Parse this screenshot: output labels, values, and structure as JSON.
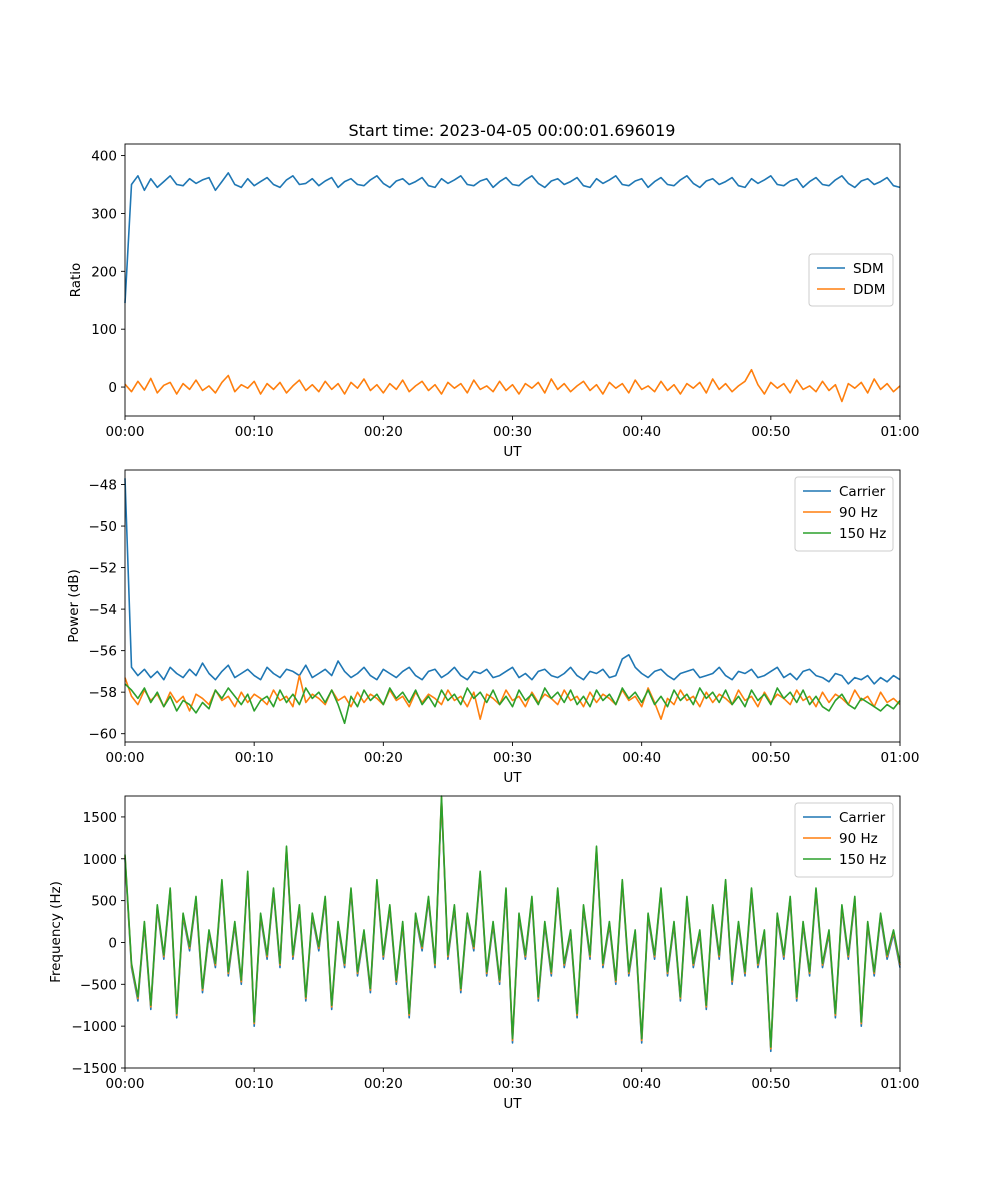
{
  "figure": {
    "title": "Start time: 2023-04-05 00:00:01.696019"
  },
  "chart_data": [
    {
      "type": "line",
      "ylabel": "Ratio",
      "xlabel": "UT",
      "xlim": [
        0,
        60
      ],
      "ylim": [
        -50,
        420
      ],
      "x_ticks": [
        "00:00",
        "00:10",
        "00:20",
        "00:30",
        "00:40",
        "00:50",
        "01:00"
      ],
      "y_ticks": [
        0,
        100,
        200,
        300,
        400
      ],
      "legend_position": "center-right",
      "series": [
        {
          "name": "SDM",
          "color": "#1f77b4",
          "values": [
            145,
            350,
            365,
            340,
            360,
            345,
            355,
            365,
            350,
            348,
            360,
            352,
            358,
            362,
            340,
            355,
            370,
            350,
            345,
            360,
            348,
            355,
            362,
            350,
            345,
            358,
            365,
            350,
            352,
            360,
            348,
            356,
            362,
            345,
            355,
            360,
            350,
            348,
            358,
            365,
            352,
            345,
            356,
            360,
            350,
            355,
            362,
            348,
            345,
            360,
            352,
            358,
            365,
            350,
            348,
            356,
            360,
            345,
            355,
            362,
            350,
            348,
            358,
            365,
            352,
            345,
            356,
            360,
            350,
            355,
            362,
            348,
            345,
            360,
            352,
            358,
            365,
            350,
            348,
            356,
            360,
            345,
            355,
            362,
            350,
            348,
            358,
            365,
            352,
            345,
            356,
            360,
            350,
            355,
            362,
            348,
            345,
            360,
            352,
            358,
            365,
            350,
            348,
            356,
            360,
            345,
            355,
            362,
            350,
            348,
            358,
            365,
            352,
            345,
            356,
            360,
            350,
            355,
            362,
            348,
            345
          ]
        },
        {
          "name": "DDM",
          "color": "#ff7f0e",
          "values": [
            5,
            -8,
            10,
            -5,
            15,
            -10,
            3,
            8,
            -12,
            6,
            -4,
            12,
            -6,
            2,
            -10,
            8,
            20,
            -8,
            4,
            -2,
            10,
            -12,
            6,
            -4,
            8,
            -10,
            2,
            12,
            -6,
            4,
            -8,
            10,
            -4,
            6,
            -12,
            8,
            -2,
            14,
            -6,
            4,
            -10,
            6,
            -4,
            12,
            -8,
            2,
            10,
            -6,
            4,
            -12,
            8,
            -2,
            6,
            -10,
            12,
            -4,
            2,
            -8,
            10,
            -6,
            4,
            -12,
            6,
            -2,
            8,
            -10,
            14,
            -4,
            6,
            -8,
            2,
            10,
            -6,
            4,
            -12,
            8,
            -2,
            6,
            -10,
            12,
            -4,
            2,
            -8,
            10,
            -6,
            4,
            -12,
            6,
            -2,
            8,
            -10,
            14,
            -4,
            6,
            -8,
            2,
            10,
            30,
            4,
            -12,
            8,
            -2,
            6,
            -10,
            12,
            -4,
            2,
            -8,
            10,
            -6,
            4,
            -25,
            6,
            -2,
            8,
            -10,
            14,
            -4,
            6,
            -8,
            2
          ]
        }
      ]
    },
    {
      "type": "line",
      "ylabel": "Power (dB)",
      "xlabel": "UT",
      "xlim": [
        0,
        60
      ],
      "ylim": [
        -60.4,
        -47.3
      ],
      "x_ticks": [
        "00:00",
        "00:10",
        "00:20",
        "00:30",
        "00:40",
        "00:50",
        "01:00"
      ],
      "y_ticks": [
        -48,
        -50,
        -52,
        -54,
        -56,
        -58,
        -60
      ],
      "legend_position": "upper right",
      "series": [
        {
          "name": "Carrier",
          "color": "#1f77b4",
          "values": [
            -47.7,
            -56.8,
            -57.2,
            -56.9,
            -57.3,
            -57.0,
            -57.4,
            -56.8,
            -57.1,
            -57.3,
            -56.9,
            -57.2,
            -56.6,
            -57.1,
            -57.4,
            -57.0,
            -56.7,
            -57.3,
            -57.1,
            -56.9,
            -57.2,
            -57.4,
            -56.8,
            -57.1,
            -57.3,
            -56.9,
            -57.0,
            -57.2,
            -56.7,
            -57.3,
            -57.1,
            -56.9,
            -57.2,
            -56.5,
            -57.0,
            -57.3,
            -57.1,
            -56.8,
            -57.2,
            -57.4,
            -56.9,
            -57.1,
            -57.3,
            -57.0,
            -56.8,
            -57.2,
            -57.4,
            -57.0,
            -56.9,
            -57.3,
            -57.1,
            -56.8,
            -57.2,
            -57.4,
            -57.0,
            -57.1,
            -56.9,
            -57.3,
            -57.2,
            -57.0,
            -56.8,
            -57.3,
            -57.1,
            -57.4,
            -57.0,
            -56.9,
            -57.2,
            -57.3,
            -57.1,
            -56.8,
            -57.2,
            -57.4,
            -57.0,
            -57.1,
            -56.9,
            -57.3,
            -57.2,
            -56.4,
            -56.2,
            -56.8,
            -57.1,
            -57.3,
            -57.0,
            -56.9,
            -57.2,
            -57.4,
            -57.1,
            -57.0,
            -56.9,
            -57.3,
            -57.2,
            -57.1,
            -56.8,
            -57.2,
            -57.4,
            -57.0,
            -57.1,
            -56.9,
            -57.3,
            -57.2,
            -57.0,
            -56.8,
            -57.3,
            -57.1,
            -57.4,
            -57.0,
            -56.9,
            -57.2,
            -57.3,
            -57.5,
            -57.1,
            -57.2,
            -57.6,
            -57.3,
            -57.4,
            -57.2,
            -57.6,
            -57.3,
            -57.5,
            -57.2,
            -57.4
          ]
        },
        {
          "name": "90 Hz",
          "color": "#ff7f0e",
          "values": [
            -57.3,
            -58.2,
            -58.6,
            -57.9,
            -58.4,
            -58.1,
            -58.7,
            -58.0,
            -58.5,
            -58.2,
            -58.9,
            -58.1,
            -58.3,
            -58.6,
            -57.9,
            -58.4,
            -58.2,
            -58.7,
            -58.0,
            -58.5,
            -58.1,
            -58.3,
            -58.6,
            -57.9,
            -58.4,
            -58.2,
            -58.7,
            -57.2,
            -58.5,
            -58.1,
            -58.3,
            -58.6,
            -57.9,
            -58.4,
            -58.2,
            -58.7,
            -58.0,
            -58.5,
            -58.1,
            -58.3,
            -58.6,
            -57.9,
            -58.4,
            -58.2,
            -58.7,
            -58.0,
            -58.5,
            -58.1,
            -58.3,
            -58.6,
            -57.9,
            -58.4,
            -58.2,
            -58.7,
            -58.0,
            -59.3,
            -58.1,
            -58.3,
            -58.6,
            -57.9,
            -58.4,
            -58.2,
            -58.7,
            -58.0,
            -58.5,
            -58.1,
            -58.3,
            -58.6,
            -57.9,
            -58.4,
            -58.2,
            -58.7,
            -58.0,
            -58.5,
            -58.1,
            -58.3,
            -58.6,
            -57.9,
            -58.4,
            -58.2,
            -58.7,
            -57.8,
            -58.5,
            -59.3,
            -58.3,
            -58.6,
            -57.9,
            -58.4,
            -58.2,
            -58.7,
            -58.0,
            -58.5,
            -58.1,
            -58.3,
            -58.6,
            -57.9,
            -58.4,
            -58.2,
            -58.7,
            -58.0,
            -58.5,
            -58.1,
            -58.3,
            -58.6,
            -57.9,
            -58.4,
            -58.2,
            -58.7,
            -58.0,
            -58.5,
            -58.1,
            -58.3,
            -58.6,
            -57.9,
            -58.4,
            -58.2,
            -58.7,
            -58.0,
            -58.5,
            -58.3,
            -58.6
          ]
        },
        {
          "name": "150 Hz",
          "color": "#2ca02c",
          "values": [
            -57.6,
            -57.9,
            -58.3,
            -57.8,
            -58.5,
            -58.0,
            -58.7,
            -58.2,
            -58.9,
            -58.4,
            -58.6,
            -59.0,
            -58.5,
            -58.8,
            -57.9,
            -58.3,
            -57.8,
            -58.2,
            -58.6,
            -58.1,
            -58.9,
            -58.4,
            -58.2,
            -58.7,
            -57.9,
            -58.5,
            -58.1,
            -58.6,
            -57.8,
            -58.3,
            -58.0,
            -58.5,
            -57.9,
            -58.6,
            -59.5,
            -58.2,
            -58.7,
            -57.9,
            -58.4,
            -58.1,
            -58.6,
            -57.8,
            -58.3,
            -58.0,
            -58.5,
            -57.9,
            -58.6,
            -58.2,
            -58.7,
            -57.9,
            -58.4,
            -58.1,
            -58.6,
            -57.8,
            -58.3,
            -58.0,
            -58.5,
            -57.9,
            -58.6,
            -58.2,
            -58.7,
            -57.9,
            -58.4,
            -58.1,
            -58.6,
            -57.8,
            -58.3,
            -58.0,
            -58.5,
            -57.9,
            -58.6,
            -58.2,
            -58.7,
            -57.9,
            -58.4,
            -58.1,
            -58.6,
            -57.8,
            -58.3,
            -58.0,
            -58.5,
            -57.9,
            -58.6,
            -58.2,
            -58.7,
            -57.9,
            -58.4,
            -58.1,
            -58.6,
            -57.8,
            -58.3,
            -58.0,
            -58.5,
            -57.9,
            -58.6,
            -58.2,
            -58.7,
            -57.9,
            -58.4,
            -58.1,
            -58.6,
            -57.8,
            -58.3,
            -58.0,
            -58.5,
            -57.9,
            -58.6,
            -58.2,
            -58.7,
            -58.9,
            -58.4,
            -58.1,
            -58.6,
            -58.8,
            -58.3,
            -58.5,
            -58.7,
            -58.9,
            -58.6,
            -58.8,
            -58.4
          ]
        }
      ]
    },
    {
      "type": "line",
      "ylabel": "Frequency (Hz)",
      "xlabel": "UT",
      "xlim": [
        0,
        60
      ],
      "ylim": [
        -1500,
        1750
      ],
      "x_ticks": [
        "00:00",
        "00:10",
        "00:20",
        "00:30",
        "00:40",
        "00:50",
        "01:00"
      ],
      "y_ticks": [
        1500,
        1000,
        500,
        0,
        -500,
        -1000,
        -1500
      ],
      "legend_position": "upper right",
      "series": [
        {
          "name": "Carrier",
          "color": "#1f77b4",
          "values": [
            1000,
            -300,
            -700,
            200,
            -800,
            400,
            -200,
            600,
            -900,
            300,
            -100,
            500,
            -600,
            100,
            -300,
            700,
            -400,
            200,
            -500,
            800,
            -1000,
            300,
            -200,
            600,
            -300,
            1100,
            -200,
            400,
            -700,
            300,
            -100,
            500,
            -800,
            200,
            -300,
            600,
            -400,
            100,
            -600,
            700,
            -200,
            400,
            -500,
            200,
            -900,
            300,
            -100,
            500,
            -300,
            1700,
            -200,
            400,
            -600,
            300,
            -100,
            800,
            -400,
            200,
            -500,
            600,
            -1200,
            300,
            -200,
            500,
            -700,
            200,
            -400,
            600,
            -300,
            100,
            -900,
            400,
            -200,
            1100,
            -300,
            200,
            -500,
            700,
            -400,
            100,
            -1200,
            300,
            -200,
            600,
            -400,
            200,
            -700,
            500,
            -300,
            100,
            -800,
            400,
            -200,
            700,
            -500,
            200,
            -400,
            600,
            -300,
            100,
            -1300,
            300,
            -200,
            500,
            -700,
            200,
            -400,
            600,
            -300,
            100,
            -900,
            400,
            -200,
            500,
            -1000,
            200,
            -400,
            300,
            -200,
            100,
            -300
          ]
        },
        {
          "name": "90 Hz",
          "color": "#ff7f0e",
          "values": [
            1030,
            -270,
            -670,
            230,
            -770,
            430,
            -170,
            630,
            -870,
            330,
            -70,
            530,
            -570,
            130,
            -270,
            730,
            -370,
            230,
            -470,
            830,
            -970,
            330,
            -170,
            630,
            -270,
            1130,
            -170,
            430,
            -670,
            330,
            -70,
            530,
            -770,
            230,
            -270,
            630,
            -370,
            130,
            -570,
            730,
            -170,
            430,
            -470,
            230,
            -870,
            330,
            -70,
            530,
            -270,
            1730,
            -170,
            430,
            -570,
            330,
            -70,
            830,
            -370,
            230,
            -470,
            630,
            -1170,
            330,
            -170,
            530,
            -670,
            230,
            -370,
            630,
            -270,
            130,
            -870,
            430,
            -170,
            1130,
            -270,
            230,
            -470,
            730,
            -370,
            130,
            -1170,
            330,
            -170,
            630,
            -370,
            230,
            -670,
            530,
            -270,
            130,
            -770,
            430,
            -170,
            730,
            -470,
            230,
            -370,
            630,
            -270,
            130,
            -1270,
            330,
            -170,
            530,
            -670,
            230,
            -370,
            630,
            -270,
            130,
            -870,
            430,
            -170,
            530,
            -970,
            230,
            -370,
            330,
            -170,
            130,
            -270
          ]
        },
        {
          "name": "150 Hz",
          "color": "#2ca02c",
          "values": [
            1050,
            -250,
            -650,
            250,
            -750,
            450,
            -150,
            650,
            -850,
            350,
            -50,
            550,
            -550,
            150,
            -250,
            750,
            -350,
            250,
            -450,
            850,
            -950,
            350,
            -150,
            650,
            -250,
            1150,
            -150,
            450,
            -650,
            350,
            -50,
            550,
            -750,
            250,
            -250,
            650,
            -350,
            150,
            -550,
            750,
            -150,
            450,
            -450,
            250,
            -850,
            350,
            -50,
            550,
            -250,
            1750,
            -150,
            450,
            -550,
            350,
            -50,
            850,
            -350,
            250,
            -450,
            650,
            -1150,
            350,
            -150,
            550,
            -650,
            250,
            -350,
            650,
            -250,
            150,
            -850,
            450,
            -150,
            1150,
            -250,
            250,
            -450,
            750,
            -350,
            150,
            -1150,
            350,
            -150,
            650,
            -350,
            250,
            -650,
            550,
            -250,
            150,
            -750,
            450,
            -150,
            750,
            -450,
            250,
            -350,
            650,
            -250,
            150,
            -1250,
            350,
            -150,
            550,
            -650,
            250,
            -350,
            650,
            -250,
            150,
            -850,
            450,
            -150,
            550,
            -950,
            250,
            -350,
            350,
            -150,
            150,
            -250
          ]
        }
      ]
    }
  ]
}
